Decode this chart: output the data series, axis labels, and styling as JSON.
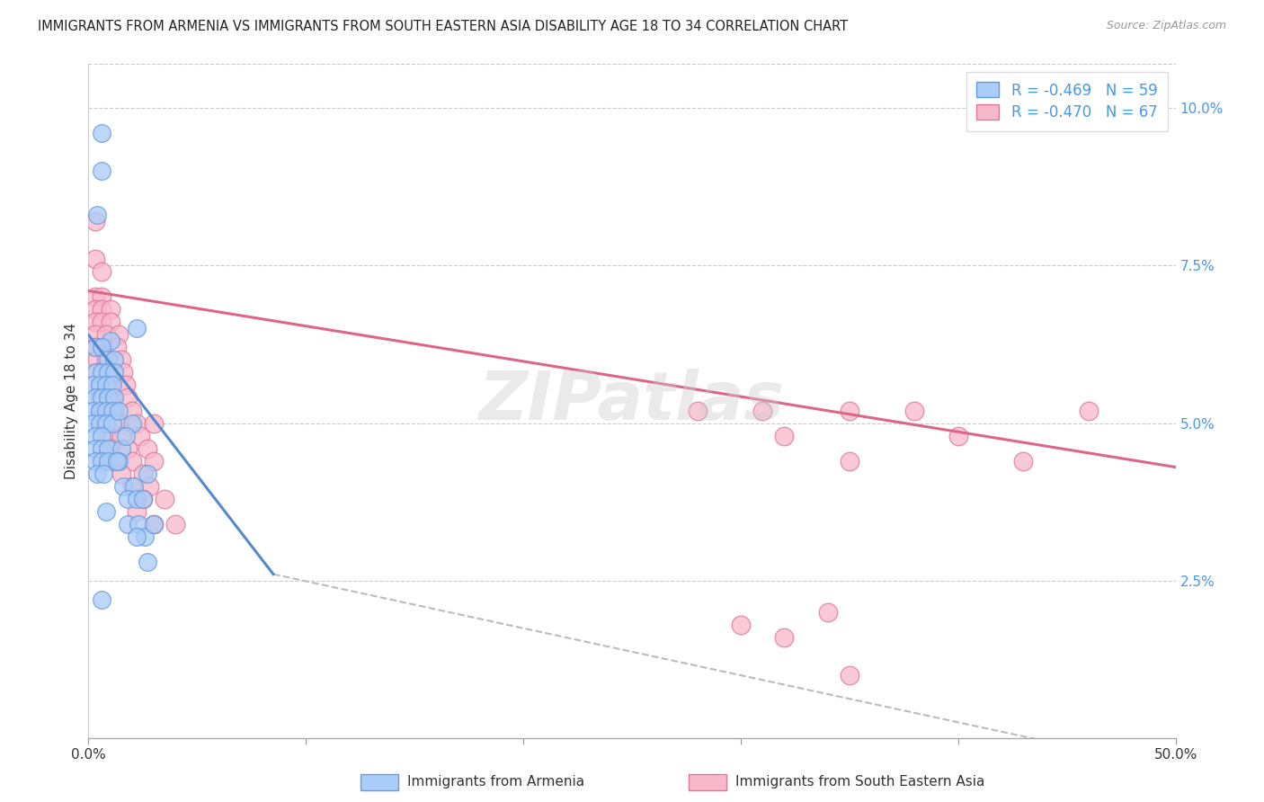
{
  "title": "IMMIGRANTS FROM ARMENIA VS IMMIGRANTS FROM SOUTH EASTERN ASIA DISABILITY AGE 18 TO 34 CORRELATION CHART",
  "source": "Source: ZipAtlas.com",
  "ylabel": "Disability Age 18 to 34",
  "yticks": [
    "2.5%",
    "5.0%",
    "7.5%",
    "10.0%"
  ],
  "ytick_vals": [
    0.025,
    0.05,
    0.075,
    0.1
  ],
  "xlim": [
    0.0,
    0.5
  ],
  "ylim": [
    0.0,
    0.107
  ],
  "legend_blue_R": "R = -0.469",
  "legend_blue_N": "N = 59",
  "legend_pink_R": "R = -0.470",
  "legend_pink_N": "N = 67",
  "legend_blue_label": "Immigrants from Armenia",
  "legend_pink_label": "Immigrants from South Eastern Asia",
  "blue_color": "#aaccf8",
  "blue_edge_color": "#6699dd",
  "blue_line_color": "#5588cc",
  "pink_color": "#f8b8cc",
  "pink_edge_color": "#dd7799",
  "pink_line_color": "#dd6688",
  "watermark": "ZIPatlas",
  "blue_scatter": [
    [
      0.006,
      0.096
    ],
    [
      0.006,
      0.09
    ],
    [
      0.004,
      0.083
    ],
    [
      0.022,
      0.065
    ],
    [
      0.01,
      0.063
    ],
    [
      0.003,
      0.062
    ],
    [
      0.006,
      0.062
    ],
    [
      0.009,
      0.06
    ],
    [
      0.012,
      0.06
    ],
    [
      0.003,
      0.058
    ],
    [
      0.006,
      0.058
    ],
    [
      0.009,
      0.058
    ],
    [
      0.012,
      0.058
    ],
    [
      0.002,
      0.056
    ],
    [
      0.005,
      0.056
    ],
    [
      0.008,
      0.056
    ],
    [
      0.011,
      0.056
    ],
    [
      0.003,
      0.054
    ],
    [
      0.006,
      0.054
    ],
    [
      0.009,
      0.054
    ],
    [
      0.012,
      0.054
    ],
    [
      0.002,
      0.052
    ],
    [
      0.005,
      0.052
    ],
    [
      0.008,
      0.052
    ],
    [
      0.011,
      0.052
    ],
    [
      0.002,
      0.05
    ],
    [
      0.005,
      0.05
    ],
    [
      0.008,
      0.05
    ],
    [
      0.011,
      0.05
    ],
    [
      0.003,
      0.048
    ],
    [
      0.006,
      0.048
    ],
    [
      0.003,
      0.046
    ],
    [
      0.006,
      0.046
    ],
    [
      0.009,
      0.046
    ],
    [
      0.015,
      0.046
    ],
    [
      0.003,
      0.044
    ],
    [
      0.006,
      0.044
    ],
    [
      0.009,
      0.044
    ],
    [
      0.014,
      0.044
    ],
    [
      0.004,
      0.042
    ],
    [
      0.007,
      0.042
    ],
    [
      0.016,
      0.04
    ],
    [
      0.021,
      0.04
    ],
    [
      0.018,
      0.038
    ],
    [
      0.022,
      0.038
    ],
    [
      0.008,
      0.036
    ],
    [
      0.018,
      0.034
    ],
    [
      0.023,
      0.034
    ],
    [
      0.026,
      0.032
    ],
    [
      0.027,
      0.028
    ],
    [
      0.006,
      0.022
    ],
    [
      0.02,
      0.05
    ],
    [
      0.014,
      0.052
    ],
    [
      0.017,
      0.048
    ],
    [
      0.013,
      0.044
    ],
    [
      0.025,
      0.038
    ],
    [
      0.03,
      0.034
    ],
    [
      0.027,
      0.042
    ],
    [
      0.022,
      0.032
    ]
  ],
  "pink_scatter": [
    [
      0.003,
      0.082
    ],
    [
      0.003,
      0.076
    ],
    [
      0.006,
      0.074
    ],
    [
      0.003,
      0.07
    ],
    [
      0.006,
      0.07
    ],
    [
      0.003,
      0.068
    ],
    [
      0.006,
      0.068
    ],
    [
      0.01,
      0.068
    ],
    [
      0.003,
      0.066
    ],
    [
      0.006,
      0.066
    ],
    [
      0.01,
      0.066
    ],
    [
      0.003,
      0.064
    ],
    [
      0.008,
      0.064
    ],
    [
      0.014,
      0.064
    ],
    [
      0.003,
      0.062
    ],
    [
      0.007,
      0.062
    ],
    [
      0.013,
      0.062
    ],
    [
      0.004,
      0.06
    ],
    [
      0.008,
      0.06
    ],
    [
      0.015,
      0.06
    ],
    [
      0.004,
      0.058
    ],
    [
      0.009,
      0.058
    ],
    [
      0.016,
      0.058
    ],
    [
      0.005,
      0.056
    ],
    [
      0.01,
      0.056
    ],
    [
      0.017,
      0.056
    ],
    [
      0.005,
      0.054
    ],
    [
      0.011,
      0.054
    ],
    [
      0.018,
      0.054
    ],
    [
      0.005,
      0.052
    ],
    [
      0.012,
      0.052
    ],
    [
      0.02,
      0.052
    ],
    [
      0.006,
      0.05
    ],
    [
      0.013,
      0.05
    ],
    [
      0.022,
      0.05
    ],
    [
      0.03,
      0.05
    ],
    [
      0.008,
      0.048
    ],
    [
      0.015,
      0.048
    ],
    [
      0.024,
      0.048
    ],
    [
      0.01,
      0.046
    ],
    [
      0.018,
      0.046
    ],
    [
      0.027,
      0.046
    ],
    [
      0.012,
      0.044
    ],
    [
      0.02,
      0.044
    ],
    [
      0.03,
      0.044
    ],
    [
      0.015,
      0.042
    ],
    [
      0.025,
      0.042
    ],
    [
      0.02,
      0.04
    ],
    [
      0.028,
      0.04
    ],
    [
      0.025,
      0.038
    ],
    [
      0.035,
      0.038
    ],
    [
      0.022,
      0.036
    ],
    [
      0.03,
      0.034
    ],
    [
      0.04,
      0.034
    ],
    [
      0.28,
      0.052
    ],
    [
      0.31,
      0.052
    ],
    [
      0.35,
      0.052
    ],
    [
      0.38,
      0.052
    ],
    [
      0.32,
      0.048
    ],
    [
      0.4,
      0.048
    ],
    [
      0.35,
      0.044
    ],
    [
      0.43,
      0.044
    ],
    [
      0.46,
      0.052
    ],
    [
      0.34,
      0.02
    ],
    [
      0.3,
      0.018
    ],
    [
      0.32,
      0.016
    ],
    [
      0.35,
      0.01
    ]
  ],
  "blue_line_x": [
    0.0,
    0.085
  ],
  "blue_line_y": [
    0.064,
    0.026
  ],
  "pink_line_x": [
    0.0,
    0.5
  ],
  "pink_line_y": [
    0.071,
    0.043
  ],
  "dashed_line_x": [
    0.085,
    0.5
  ],
  "dashed_line_y": [
    0.026,
    -0.005
  ]
}
